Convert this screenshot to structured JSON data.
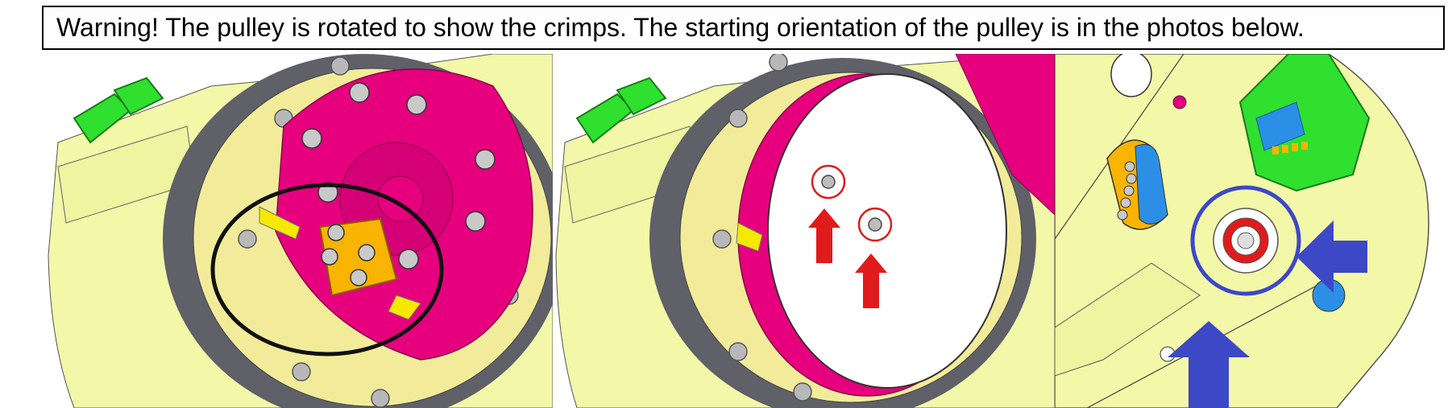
{
  "warning": {
    "text": "Warning! The pulley is rotated to show the crimps. The starting orientation of the pulley is in the photos below."
  },
  "colors": {
    "housing_yellow": "#f3f7a8",
    "flange_yellow": "#f2ec9a",
    "pulley_magenta": "#e6007e",
    "clip_green": "#2fe02f",
    "crimp_orange": "#f8b400",
    "callout_red": "#e11b1b",
    "callout_blue": "#3c48c6",
    "dark_grey": "#5f6068"
  },
  "panels": [
    {
      "id": "crimps-with-pulley",
      "annotation": "black-ellipse"
    },
    {
      "id": "crimp-screws-covered",
      "annotation": "red-circles-and-arrows"
    },
    {
      "id": "starting-orientation",
      "annotation": "blue-circle-and-arrows"
    }
  ]
}
